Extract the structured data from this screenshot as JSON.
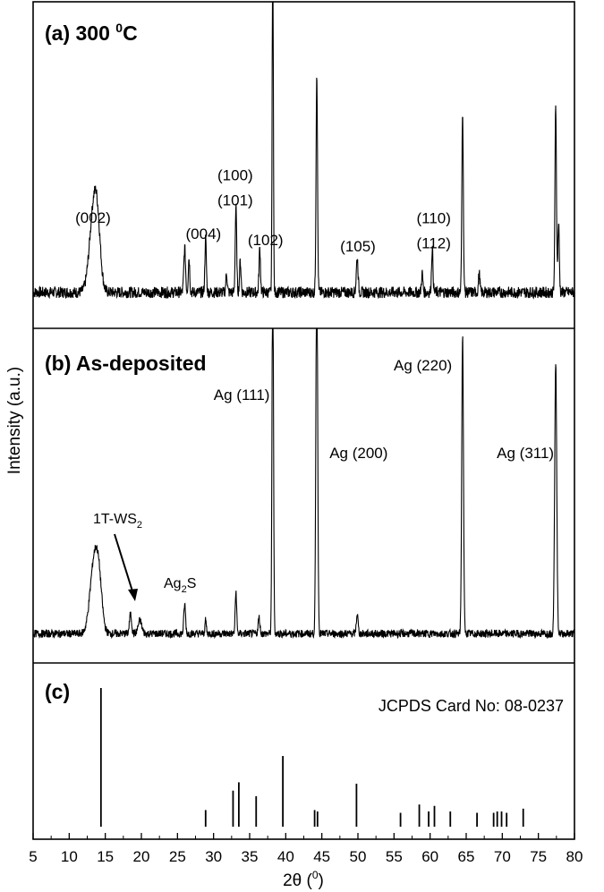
{
  "chart_data": {
    "type": "line",
    "xlabel_main": "2θ (",
    "xlabel_sup": "0",
    "xlabel_close": ")",
    "ylabel": "Intensity (a.u.)",
    "xlim": [
      5,
      80
    ],
    "xticks": [
      "5",
      "10",
      "15",
      "20",
      "25",
      "30",
      "35",
      "40",
      "45",
      "50",
      "55",
      "60",
      "65",
      "70",
      "75",
      "80"
    ],
    "panels": [
      {
        "id": "a",
        "label_main": "(a) 300 ",
        "label_sup": "0",
        "label_tail": "C",
        "baseline": 0.08,
        "noise": 0.018,
        "peaks": [
          {
            "x": 13.3,
            "y": 0.22,
            "w": 0.55
          },
          {
            "x": 13.9,
            "y": 0.17,
            "w": 0.45
          },
          {
            "x": 26.0,
            "y": 0.14,
            "w": 0.12
          },
          {
            "x": 26.6,
            "y": 0.11,
            "w": 0.1
          },
          {
            "x": 28.9,
            "y": 0.17,
            "w": 0.1
          },
          {
            "x": 31.8,
            "y": 0.06,
            "w": 0.1
          },
          {
            "x": 33.1,
            "y": 0.27,
            "w": 0.1
          },
          {
            "x": 33.7,
            "y": 0.1,
            "w": 0.1
          },
          {
            "x": 36.4,
            "y": 0.14,
            "w": 0.1
          },
          {
            "x": 38.2,
            "y": 1.2,
            "w": 0.08
          },
          {
            "x": 44.3,
            "y": 0.7,
            "w": 0.1
          },
          {
            "x": 49.9,
            "y": 0.11,
            "w": 0.12
          },
          {
            "x": 58.9,
            "y": 0.06,
            "w": 0.1
          },
          {
            "x": 60.3,
            "y": 0.14,
            "w": 0.1
          },
          {
            "x": 64.5,
            "y": 0.58,
            "w": 0.1
          },
          {
            "x": 66.8,
            "y": 0.06,
            "w": 0.1
          },
          {
            "x": 77.4,
            "y": 0.6,
            "w": 0.1
          },
          {
            "x": 77.8,
            "y": 0.22,
            "w": 0.1
          }
        ],
        "annotations": [
          {
            "lines": [
              "(002)"
            ],
            "x": 13.3,
            "y": 0.3
          },
          {
            "lines": [
              "(004)"
            ],
            "x": 28.6,
            "y": 0.25
          },
          {
            "lines": [
              "(100)",
              "(101)"
            ],
            "x": 33.0,
            "y": 0.355
          },
          {
            "lines": [
              "(102)"
            ],
            "x": 37.2,
            "y": 0.23
          },
          {
            "lines": [
              "(105)"
            ],
            "x": 50.0,
            "y": 0.21
          },
          {
            "lines": [
              "(110)",
              "(112)"
            ],
            "x": 60.5,
            "y": 0.22
          }
        ]
      },
      {
        "id": "b",
        "label_main": "(b) As-deposited",
        "label_sup": "",
        "label_tail": "",
        "baseline": 0.06,
        "noise": 0.012,
        "peaks": [
          {
            "x": 13.4,
            "y": 0.2,
            "w": 0.55
          },
          {
            "x": 14.1,
            "y": 0.14,
            "w": 0.45
          },
          {
            "x": 18.5,
            "y": 0.06,
            "w": 0.15
          },
          {
            "x": 19.8,
            "y": 0.04,
            "w": 0.25
          },
          {
            "x": 26.0,
            "y": 0.09,
            "w": 0.12
          },
          {
            "x": 28.9,
            "y": 0.04,
            "w": 0.1
          },
          {
            "x": 33.1,
            "y": 0.13,
            "w": 0.1
          },
          {
            "x": 36.3,
            "y": 0.05,
            "w": 0.12
          },
          {
            "x": 38.2,
            "y": 1.2,
            "w": 0.1
          },
          {
            "x": 44.3,
            "y": 1.2,
            "w": 0.12
          },
          {
            "x": 49.9,
            "y": 0.06,
            "w": 0.12
          },
          {
            "x": 64.5,
            "y": 0.92,
            "w": 0.12
          },
          {
            "x": 77.4,
            "y": 0.84,
            "w": 0.14
          }
        ],
        "annotations": [
          {
            "lines": [
              "Ag (111)"
            ],
            "x": 33.9,
            "y": 0.78
          },
          {
            "lines": [
              "Ag (200)"
            ],
            "x": 50.1,
            "y": 0.6
          },
          {
            "lines": [
              "Ag (220)"
            ],
            "x": 59.0,
            "y": 0.87
          },
          {
            "lines": [
              "Ag (311)"
            ],
            "x": 73.2,
            "y": 0.6
          }
        ],
        "phase_labels": {
          "ws2_main": "1T-WS",
          "ws2_sub": "2",
          "ag2s_main": "Ag",
          "ag2s_sub": "2",
          "ag2s_tail": "S"
        }
      }
    ],
    "reference": {
      "id": "c",
      "label": "(c)",
      "card": "JCPDS Card No: 08-0237",
      "lines": [
        {
          "x": 14.4,
          "y": 1.0
        },
        {
          "x": 28.9,
          "y": 0.12
        },
        {
          "x": 32.7,
          "y": 0.26
        },
        {
          "x": 33.5,
          "y": 0.32
        },
        {
          "x": 35.9,
          "y": 0.22
        },
        {
          "x": 39.6,
          "y": 0.51
        },
        {
          "x": 44.0,
          "y": 0.12
        },
        {
          "x": 44.4,
          "y": 0.11
        },
        {
          "x": 49.8,
          "y": 0.31
        },
        {
          "x": 55.9,
          "y": 0.1
        },
        {
          "x": 58.5,
          "y": 0.16
        },
        {
          "x": 59.8,
          "y": 0.11
        },
        {
          "x": 60.6,
          "y": 0.15
        },
        {
          "x": 62.8,
          "y": 0.11
        },
        {
          "x": 66.5,
          "y": 0.1
        },
        {
          "x": 68.8,
          "y": 0.1
        },
        {
          "x": 69.3,
          "y": 0.11
        },
        {
          "x": 69.9,
          "y": 0.11
        },
        {
          "x": 70.6,
          "y": 0.1
        },
        {
          "x": 72.9,
          "y": 0.13
        }
      ]
    }
  }
}
